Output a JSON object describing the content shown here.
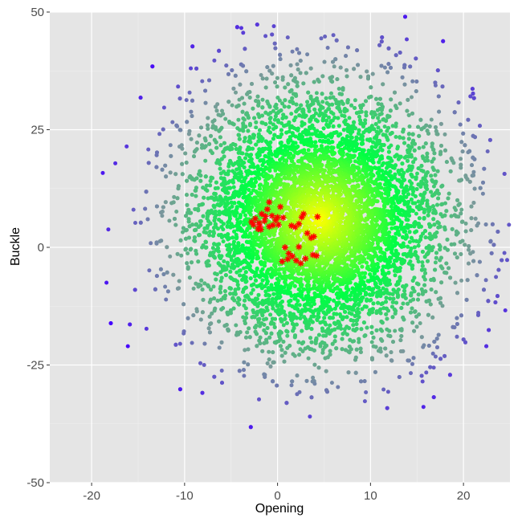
{
  "chart_data": {
    "type": "scatter",
    "xlabel": "Opening",
    "ylabel": "Buckle",
    "xlim": [
      -24.5,
      25
    ],
    "ylim": [
      -50,
      50
    ],
    "x_ticks": [
      -20,
      -10,
      0,
      10,
      20
    ],
    "y_ticks": [
      -50,
      -25,
      0,
      25,
      50
    ],
    "x_tick_labels": [
      "-20",
      "-10",
      "0",
      "10",
      "20"
    ],
    "y_tick_labels": [
      "-50",
      "-25",
      "0",
      "25",
      "50"
    ],
    "grid": true,
    "background": "#e5e5e5",
    "series": [
      {
        "kind": "point cloud",
        "marker": "circle",
        "center": [
          4.5,
          6.0
        ],
        "spread": [
          6.6,
          13.0
        ],
        "approx_count": 12000,
        "color_scale": [
          "#ffff00",
          "#00ff44",
          "#7a9a9a",
          "#4400ff"
        ],
        "outer_points": [
          [
            -18.8,
            15.8
          ],
          [
            -18.2,
            3.8
          ],
          [
            -18.4,
            -7.5
          ],
          [
            -14.1,
            -17.3
          ],
          [
            -13.9,
            20.8
          ],
          [
            -12.2,
            29.7
          ],
          [
            -15.3,
            5.2
          ],
          [
            -15.5,
            8.0
          ],
          [
            -12.7,
            24.1
          ],
          [
            -13.8,
            -4.9
          ],
          [
            -12.0,
            -11.1
          ],
          [
            -10.8,
            25.7
          ],
          [
            -10.1,
            -18.3
          ],
          [
            -9.2,
            -20.3
          ],
          [
            -9.8,
            31.3
          ],
          [
            -8.1,
            35.3
          ],
          [
            -6.8,
            39.7
          ],
          [
            -3.6,
            -27.3
          ],
          [
            -2.0,
            -32.3
          ],
          [
            -1.3,
            44.9
          ],
          [
            -3.7,
            45.6
          ],
          [
            -3.9,
            46.6
          ],
          [
            -0.4,
            47.0
          ],
          [
            1.1,
            44.6
          ],
          [
            1.6,
            41.6
          ],
          [
            2.1,
            42.1
          ],
          [
            3.2,
            41.0
          ],
          [
            4.7,
            44.4
          ],
          [
            5.1,
            44.8
          ],
          [
            6.0,
            45.1
          ],
          [
            5.4,
            42.4
          ],
          [
            1.5,
            -29.3
          ],
          [
            2.1,
            -31.2
          ],
          [
            3.8,
            -27.7
          ],
          [
            4.0,
            -29.0
          ],
          [
            6.5,
            -29.7
          ],
          [
            9.5,
            -30.8
          ],
          [
            9.4,
            -32.7
          ],
          [
            11.4,
            -30.2
          ],
          [
            11.9,
            -30.7
          ],
          [
            13.9,
            44.2
          ],
          [
            15.6,
            -28.5
          ],
          [
            15.7,
            -33.9
          ],
          [
            17.0,
            34.4
          ],
          [
            18.0,
            24.0
          ],
          [
            20.5,
            20.2
          ],
          [
            19.7,
            18.8
          ],
          [
            21.1,
            16.0
          ],
          [
            22.1,
            11.4
          ],
          [
            22.6,
            20.4
          ],
          [
            21.3,
            6.1
          ],
          [
            21.6,
            5.1
          ],
          [
            23.5,
            -6.3
          ],
          [
            24.7,
            -2.7
          ],
          [
            24.4,
            -1.2
          ],
          [
            24.9,
            4.8
          ],
          [
            24.5,
            -13.4
          ],
          [
            21.6,
            -13.9
          ],
          [
            19.3,
            -19.0
          ],
          [
            17.0,
            -23.2
          ],
          [
            14.5,
            -24.8
          ],
          [
            16.0,
            -26.6
          ],
          [
            -16.1,
            -21.0
          ],
          [
            -11.3,
            26.6
          ],
          [
            -6.0,
            -26.2
          ]
        ]
      },
      {
        "kind": "highlighted points",
        "marker": "asterisk",
        "color": "#ff0000",
        "points": [
          [
            -2.8,
            5.4
          ],
          [
            -2.6,
            4.8
          ],
          [
            -2.4,
            6.1
          ],
          [
            -2.1,
            3.9
          ],
          [
            -1.9,
            4.5
          ],
          [
            -1.7,
            7.1
          ],
          [
            -1.4,
            5.6
          ],
          [
            -1.1,
            8.1
          ],
          [
            -0.9,
            9.6
          ],
          [
            -1.3,
            6.6
          ],
          [
            -0.6,
            6.7
          ],
          [
            -0.2,
            5.8
          ],
          [
            0.0,
            6.4
          ],
          [
            0.3,
            8.6
          ],
          [
            0.1,
            4.8
          ],
          [
            0.6,
            6.3
          ],
          [
            -0.5,
            4.7
          ],
          [
            -1.8,
            3.8
          ],
          [
            -0.9,
            4.4
          ],
          [
            -2.0,
            5.2
          ],
          [
            1.5,
            4.6
          ],
          [
            2.3,
            5.0
          ],
          [
            2.6,
            6.4
          ],
          [
            2.8,
            7.1
          ],
          [
            3.2,
            3.0
          ],
          [
            3.6,
            2.0
          ],
          [
            3.9,
            2.3
          ],
          [
            4.3,
            6.5
          ],
          [
            1.9,
            4.3
          ],
          [
            0.8,
            0.0
          ],
          [
            1.2,
            -1.3
          ],
          [
            1.6,
            -1.9
          ],
          [
            1.1,
            -2.5
          ],
          [
            2.3,
            0.1
          ],
          [
            2.0,
            -2.8
          ],
          [
            2.5,
            -3.4
          ],
          [
            3.0,
            -2.4
          ],
          [
            3.8,
            -1.6
          ],
          [
            4.2,
            -1.8
          ],
          [
            0.5,
            -3.0
          ]
        ]
      }
    ]
  }
}
